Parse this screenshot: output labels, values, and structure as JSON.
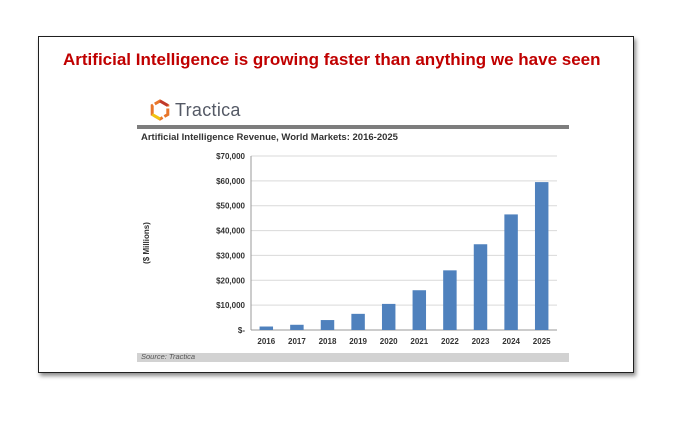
{
  "headline": "Artificial Intelligence is growing faster than anything we have seen",
  "logo": {
    "text": "Tractica",
    "icon": "tractica-hexagon-icon"
  },
  "colors": {
    "headline": "#c00000",
    "bar": "#4f81bd",
    "rule": "#7d7d7d"
  },
  "source": "Source: Tractica",
  "chart_data": {
    "type": "bar",
    "title": "Artificial Intelligence Revenue, World Markets: 2016-2025",
    "xlabel": "",
    "ylabel": "($ Millions)",
    "categories": [
      "2016",
      "2017",
      "2018",
      "2019",
      "2020",
      "2021",
      "2022",
      "2023",
      "2024",
      "2025"
    ],
    "values": [
      1400,
      2100,
      4000,
      6500,
      10500,
      16000,
      24000,
      34500,
      46500,
      59500
    ],
    "ylim": [
      0,
      70000
    ],
    "yticks": [
      0,
      10000,
      20000,
      30000,
      40000,
      50000,
      60000,
      70000
    ],
    "ytick_labels": [
      "$-",
      "$10,000",
      "$20,000",
      "$30,000",
      "$40,000",
      "$50,000",
      "$60,000",
      "$70,000"
    ],
    "grid": true,
    "legend": "none"
  }
}
